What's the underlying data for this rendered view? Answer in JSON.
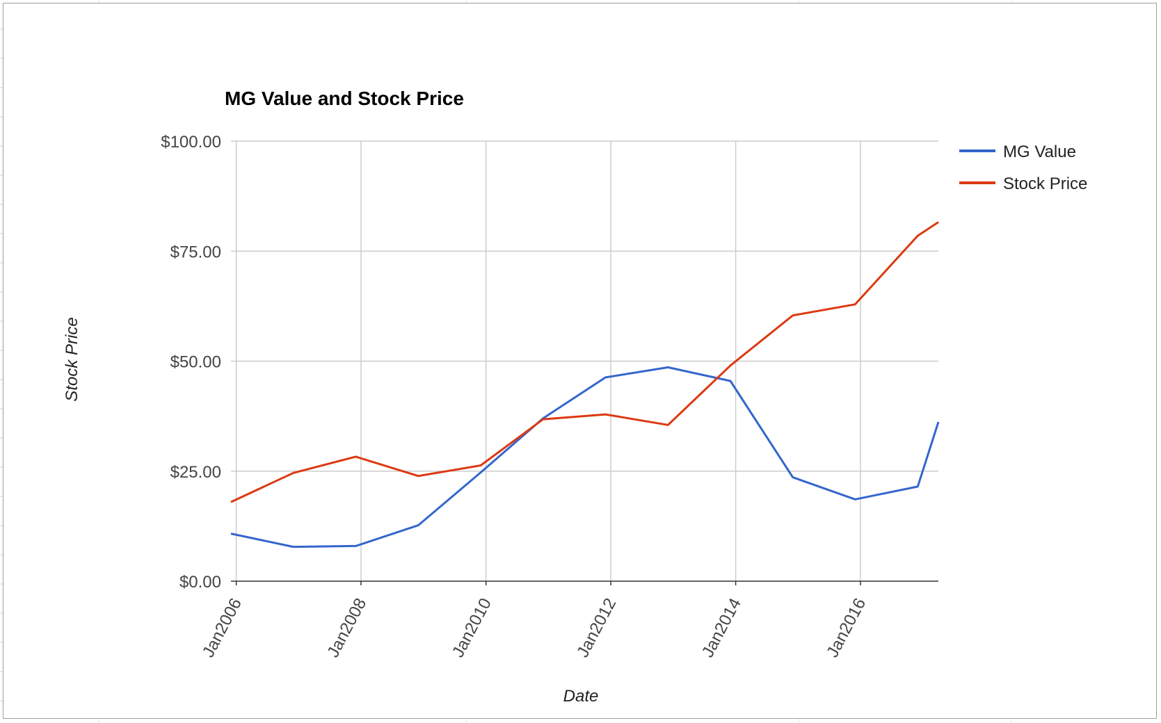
{
  "chart_data": {
    "type": "line",
    "title": "MG Value and Stock Price",
    "xlabel": "Date",
    "ylabel": "Stock Price",
    "x_ticks": [
      "Jan2006",
      "Jan2008",
      "Jan2010",
      "Jan2012",
      "Jan2014",
      "Jan2016"
    ],
    "y_ticks": [
      "$0.00",
      "$25.00",
      "$50.00",
      "$75.00",
      "$100.00"
    ],
    "ylim": [
      0,
      100
    ],
    "xlim": [
      "2005-12-01",
      "2017-04-01"
    ],
    "grid": true,
    "legend_position": "right",
    "series": [
      {
        "name": "MG Value",
        "color": "#3366cc",
        "points": [
          {
            "x": "2005-12-01",
            "y": 10.8
          },
          {
            "x": "2006-12-01",
            "y": 7.8
          },
          {
            "x": "2007-12-01",
            "y": 8.0
          },
          {
            "x": "2008-12-01",
            "y": 12.7
          },
          {
            "x": "2009-12-01",
            "y": 24.7
          },
          {
            "x": "2010-12-01",
            "y": 37.0
          },
          {
            "x": "2011-12-01",
            "y": 46.3
          },
          {
            "x": "2012-12-01",
            "y": 48.6
          },
          {
            "x": "2013-12-01",
            "y": 45.5
          },
          {
            "x": "2014-12-01",
            "y": 23.6
          },
          {
            "x": "2015-12-01",
            "y": 18.6
          },
          {
            "x": "2016-12-01",
            "y": 21.5
          },
          {
            "x": "2017-04-01",
            "y": 36.2
          }
        ]
      },
      {
        "name": "Stock Price",
        "color": "#dc3912",
        "points": [
          {
            "x": "2005-12-01",
            "y": 18.0
          },
          {
            "x": "2006-12-01",
            "y": 24.6
          },
          {
            "x": "2007-12-01",
            "y": 28.3
          },
          {
            "x": "2008-12-01",
            "y": 23.9
          },
          {
            "x": "2009-12-01",
            "y": 26.3
          },
          {
            "x": "2010-12-01",
            "y": 36.8
          },
          {
            "x": "2011-12-01",
            "y": 37.9
          },
          {
            "x": "2012-12-01",
            "y": 35.5
          },
          {
            "x": "2013-12-01",
            "y": 49.0
          },
          {
            "x": "2014-12-01",
            "y": 60.4
          },
          {
            "x": "2015-12-01",
            "y": 62.9
          },
          {
            "x": "2016-12-01",
            "y": 78.5
          },
          {
            "x": "2017-04-01",
            "y": 81.6
          }
        ]
      }
    ]
  }
}
